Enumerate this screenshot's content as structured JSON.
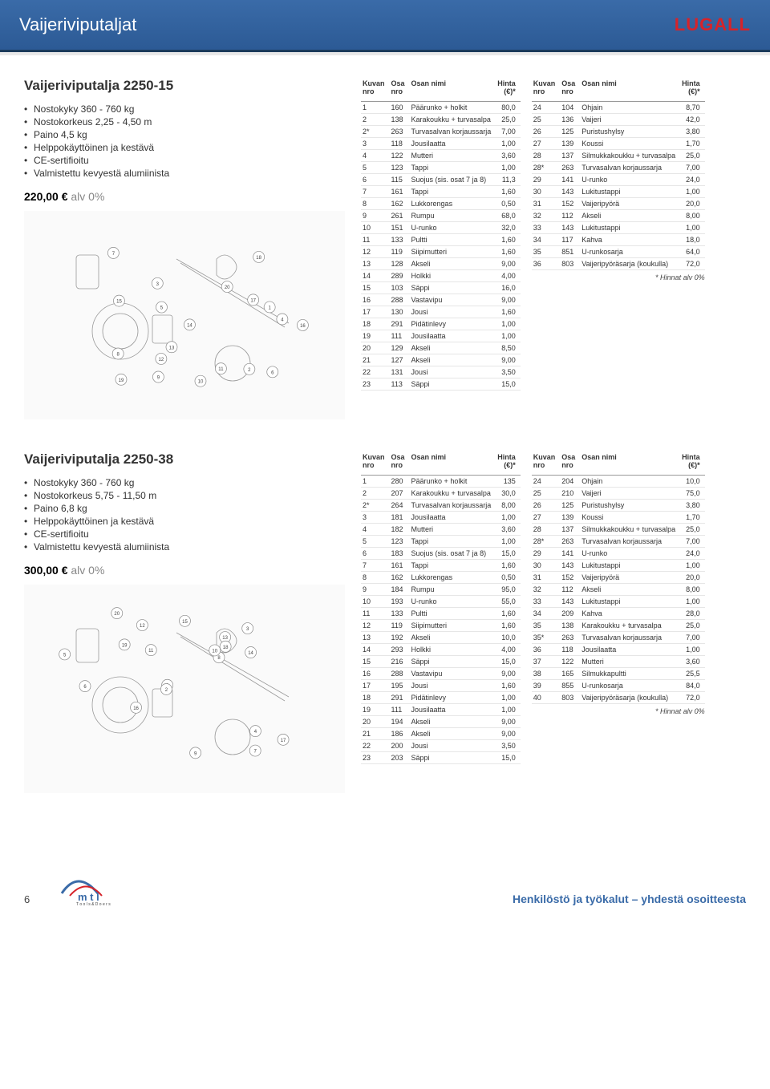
{
  "header": {
    "title": "Vaijeriviputaljat",
    "brand": "LUGALL"
  },
  "footer": {
    "pageNumber": "6",
    "tagline": "Tools & Doers",
    "slogan": "Henkilöstö ja työkalut – yhdestä osoitteesta"
  },
  "tableHeaders": {
    "imgNo": "Kuvan\nnro",
    "partNo": "Osa\nnro",
    "partName": "Osan nimi",
    "price": "Hinta\n(€)*"
  },
  "footnote": "* Hinnat alv 0%",
  "colors": {
    "headerBg": "#2c5a95",
    "brandRed": "#d6232a",
    "footerBlue": "#3a6ba8",
    "rowBorder": "#e6e6e6",
    "headBorder": "#999999"
  },
  "products": [
    {
      "title": "Vaijeriviputalja 2250-15",
      "specs": [
        "Nostokyky 360 - 760 kg",
        "Nostokorkeus 2,25 - 4,50 m",
        "Paino 4,5 kg",
        "Helppokäyttöinen ja kestävä",
        "CE-sertifioitu",
        "Valmistettu kevyestä alumiinista"
      ],
      "priceValue": "220,00 €",
      "priceSuffix": "alv 0%",
      "partsLeft": [
        [
          "1",
          "160",
          "Päärunko + holkit",
          "80,0"
        ],
        [
          "2",
          "138",
          "Karakoukku + turvasalpa",
          "25,0"
        ],
        [
          "2*",
          "263",
          "Turvasalvan korjaussarja",
          "7,00"
        ],
        [
          "3",
          "118",
          "Jousilaatta",
          "1,00"
        ],
        [
          "4",
          "122",
          "Mutteri",
          "3,60"
        ],
        [
          "5",
          "123",
          "Tappi",
          "1,00"
        ],
        [
          "6",
          "115",
          "Suojus (sis. osat 7 ja 8)",
          "11,3"
        ],
        [
          "7",
          "161",
          "Tappi",
          "1,60"
        ],
        [
          "8",
          "162",
          "Lukkorengas",
          "0,50"
        ],
        [
          "9",
          "261",
          "Rumpu",
          "68,0"
        ],
        [
          "10",
          "151",
          "U-runko",
          "32,0"
        ],
        [
          "11",
          "133",
          "Pultti",
          "1,60"
        ],
        [
          "12",
          "119",
          "Siipimutteri",
          "1,60"
        ],
        [
          "13",
          "128",
          "Akseli",
          "9,00"
        ],
        [
          "14",
          "289",
          "Holkki",
          "4,00"
        ],
        [
          "15",
          "103",
          "Säppi",
          "16,0"
        ],
        [
          "16",
          "288",
          "Vastavipu",
          "9,00"
        ],
        [
          "17",
          "130",
          "Jousi",
          "1,60"
        ],
        [
          "18",
          "291",
          "Pidätinlevy",
          "1,00"
        ],
        [
          "19",
          "111",
          "Jousilaatta",
          "1,00"
        ],
        [
          "20",
          "129",
          "Akseli",
          "8,50"
        ],
        [
          "21",
          "127",
          "Akseli",
          "9,00"
        ],
        [
          "22",
          "131",
          "Jousi",
          "3,50"
        ],
        [
          "23",
          "113",
          "Säppi",
          "15,0"
        ]
      ],
      "partsRight": [
        [
          "24",
          "104",
          "Ohjain",
          "8,70"
        ],
        [
          "25",
          "136",
          "Vaijeri",
          "42,0"
        ],
        [
          "26",
          "125",
          "Puristushylsy",
          "3,80"
        ],
        [
          "27",
          "139",
          "Koussi",
          "1,70"
        ],
        [
          "28",
          "137",
          "Silmukkakoukku + turvasalpa",
          "25,0"
        ],
        [
          "28*",
          "263",
          "Turvasalvan korjaussarja",
          "7,00"
        ],
        [
          "29",
          "141",
          "U-runko",
          "24,0"
        ],
        [
          "30",
          "143",
          "Lukitustappi",
          "1,00"
        ],
        [
          "31",
          "152",
          "Vaijeripyörä",
          "20,0"
        ],
        [
          "32",
          "112",
          "Akseli",
          "8,00"
        ],
        [
          "33",
          "143",
          "Lukitustappi",
          "1,00"
        ],
        [
          "34",
          "117",
          "Kahva",
          "18,0"
        ],
        [
          "35",
          "851",
          "U-runkosarja",
          "64,0"
        ],
        [
          "36",
          "803",
          "Vaijeripyöräsarja (koukulla)",
          "72,0"
        ]
      ]
    },
    {
      "title": "Vaijeriviputalja 2250-38",
      "specs": [
        "Nostokyky 360 - 760 kg",
        "Nostokorkeus 5,75 - 11,50 m",
        "Paino 6,8 kg",
        "Helppokäyttöinen ja kestävä",
        "CE-sertifioitu",
        "Valmistettu kevyestä alumiinista"
      ],
      "priceValue": "300,00 €",
      "priceSuffix": "alv 0%",
      "partsLeft": [
        [
          "1",
          "280",
          "Päärunko + holkit",
          "135"
        ],
        [
          "2",
          "207",
          "Karakoukku + turvasalpa",
          "30,0"
        ],
        [
          "2*",
          "264",
          "Turvasalvan korjaussarja",
          "8,00"
        ],
        [
          "3",
          "181",
          "Jousilaatta",
          "1,00"
        ],
        [
          "4",
          "182",
          "Mutteri",
          "3,60"
        ],
        [
          "5",
          "123",
          "Tappi",
          "1,00"
        ],
        [
          "6",
          "183",
          "Suojus (sis. osat 7 ja 8)",
          "15,0"
        ],
        [
          "7",
          "161",
          "Tappi",
          "1,60"
        ],
        [
          "8",
          "162",
          "Lukkorengas",
          "0,50"
        ],
        [
          "9",
          "184",
          "Rumpu",
          "95,0"
        ],
        [
          "10",
          "193",
          "U-runko",
          "55,0"
        ],
        [
          "11",
          "133",
          "Pultti",
          "1,60"
        ],
        [
          "12",
          "119",
          "Siipimutteri",
          "1,60"
        ],
        [
          "13",
          "192",
          "Akseli",
          "10,0"
        ],
        [
          "14",
          "293",
          "Holkki",
          "4,00"
        ],
        [
          "15",
          "216",
          "Säppi",
          "15,0"
        ],
        [
          "16",
          "288",
          "Vastavipu",
          "9,00"
        ],
        [
          "17",
          "195",
          "Jousi",
          "1,60"
        ],
        [
          "18",
          "291",
          "Pidätinlevy",
          "1,00"
        ],
        [
          "19",
          "111",
          "Jousilaatta",
          "1,00"
        ],
        [
          "20",
          "194",
          "Akseli",
          "9,00"
        ],
        [
          "21",
          "186",
          "Akseli",
          "9,00"
        ],
        [
          "22",
          "200",
          "Jousi",
          "3,50"
        ],
        [
          "23",
          "203",
          "Säppi",
          "15,0"
        ]
      ],
      "partsRight": [
        [
          "24",
          "204",
          "Ohjain",
          "10,0"
        ],
        [
          "25",
          "210",
          "Vaijeri",
          "75,0"
        ],
        [
          "26",
          "125",
          "Puristushylsy",
          "3,80"
        ],
        [
          "27",
          "139",
          "Koussi",
          "1,70"
        ],
        [
          "28",
          "137",
          "Silmukkakoukku + turvasalpa",
          "25,0"
        ],
        [
          "28*",
          "263",
          "Turvasalvan korjaussarja",
          "7,00"
        ],
        [
          "29",
          "141",
          "U-runko",
          "24,0"
        ],
        [
          "30",
          "143",
          "Lukitustappi",
          "1,00"
        ],
        [
          "31",
          "152",
          "Vaijeripyörä",
          "20,0"
        ],
        [
          "32",
          "112",
          "Akseli",
          "8,00"
        ],
        [
          "33",
          "143",
          "Lukitustappi",
          "1,00"
        ],
        [
          "34",
          "209",
          "Kahva",
          "28,0"
        ],
        [
          "35",
          "138",
          "Karakoukku + turvasalpa",
          "25,0"
        ],
        [
          "35*",
          "263",
          "Turvasalvan korjaussarja",
          "7,00"
        ],
        [
          "36",
          "118",
          "Jousilaatta",
          "1,00"
        ],
        [
          "37",
          "122",
          "Mutteri",
          "3,60"
        ],
        [
          "38",
          "165",
          "Silmukkapultti",
          "25,5"
        ],
        [
          "39",
          "855",
          "U-runkosarja",
          "84,0"
        ],
        [
          "40",
          "803",
          "Vaijeripyöräsarja (koukulla)",
          "72,0"
        ]
      ]
    }
  ]
}
